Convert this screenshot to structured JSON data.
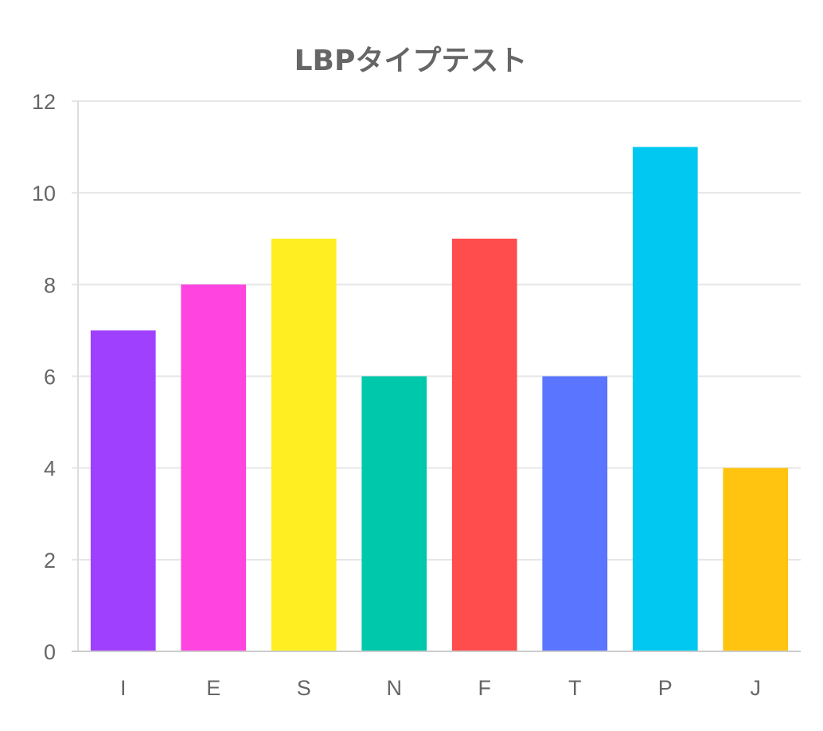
{
  "chart_data": {
    "type": "bar",
    "title": "LBPタイプテスト",
    "categories": [
      "I",
      "E",
      "S",
      "N",
      "F",
      "T",
      "P",
      "J"
    ],
    "values": [
      7,
      8,
      9,
      6,
      9,
      6,
      11,
      4
    ],
    "colors": [
      "#A040FF",
      "#FF44E0",
      "#FFEE22",
      "#00C8AA",
      "#FF4C4C",
      "#5A75FF",
      "#00C8F0",
      "#FFC410"
    ],
    "xlabel": "",
    "ylabel": "",
    "ylim": [
      0,
      12
    ],
    "yticks": [
      0,
      2,
      4,
      6,
      8,
      10,
      12
    ],
    "grid": true,
    "legend": "none"
  }
}
